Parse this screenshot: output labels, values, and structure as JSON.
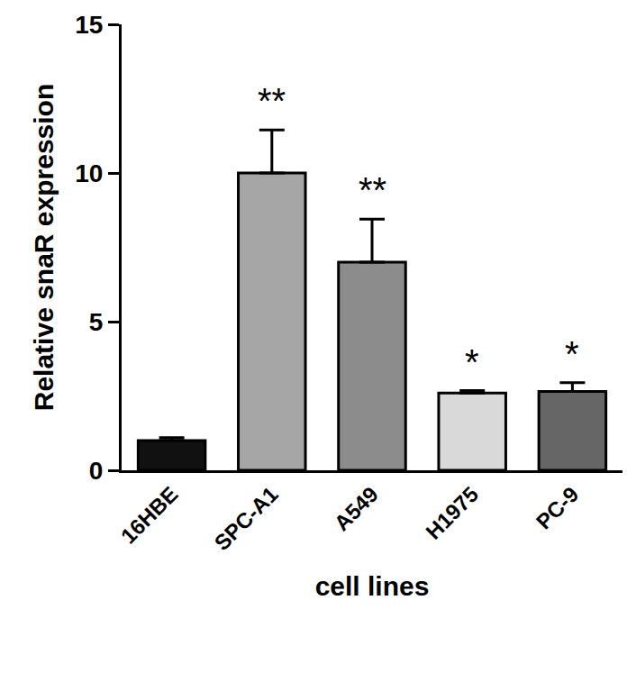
{
  "chart_data": {
    "type": "bar",
    "x_label": "cell lines",
    "y_label": "Relative snaR expression",
    "categories": [
      "16HBE",
      "SPC-A1",
      "A549",
      "H1975",
      "PC-9"
    ],
    "values": [
      1.0,
      10.0,
      7.0,
      2.6,
      2.65
    ],
    "errors": [
      0.1,
      1.45,
      1.45,
      0.08,
      0.3
    ],
    "colors": [
      "#111111",
      "#a6a6a6",
      "#8c8c8c",
      "#d9d9d9",
      "#666666"
    ],
    "ylim": [
      0,
      15
    ],
    "yticks": [
      0,
      5,
      10,
      15
    ],
    "grid": false,
    "annotations": [
      {
        "category": "SPC-A1",
        "text": "**"
      },
      {
        "category": "A549",
        "text": "**"
      },
      {
        "category": "H1975",
        "text": "*"
      },
      {
        "category": "PC-9",
        "text": "*"
      }
    ]
  }
}
